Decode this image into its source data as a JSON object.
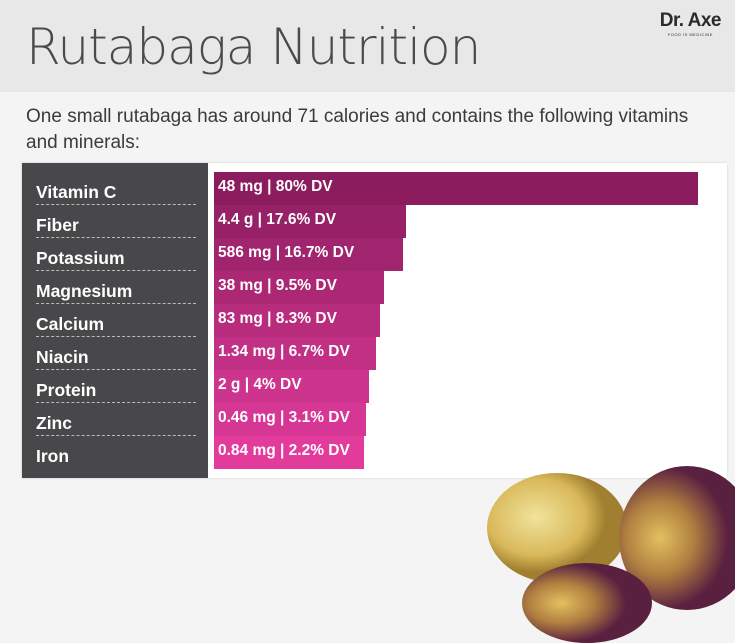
{
  "header": {
    "title": "Rutabaga Nutrition",
    "logo_name": "Dr. Axe",
    "logo_tagline": "FOOD IS MEDICINE"
  },
  "intro": "One small rutabaga has around 71 calories and contains the following vitamins and minerals:",
  "colors": {
    "top": "#8b1d5e",
    "bottom": "#e23b9c",
    "label_bg": "#48484a"
  },
  "chart_data": {
    "type": "bar",
    "orientation": "horizontal",
    "title": "Rutabaga Nutrition",
    "unit": "% DV",
    "categories": [
      "Vitamin C",
      "Fiber",
      "Potassium",
      "Magnesium",
      "Calcium",
      "Niacin",
      "Protein",
      "Zinc",
      "Iron"
    ],
    "values": [
      80,
      17.6,
      16.7,
      9.5,
      8.3,
      6.7,
      4,
      3.1,
      2.2
    ],
    "labels": [
      "48 mg | 80% DV",
      "4.4 g | 17.6% DV",
      "586 mg | 16.7% DV",
      "38 mg | 9.5% DV",
      "83 mg | 8.3% DV",
      "1.34 mg | 6.7% DV",
      "2 g | 4% DV",
      "0.46 mg | 3.1% DV",
      "0.84 mg | 2.2% DV"
    ]
  }
}
